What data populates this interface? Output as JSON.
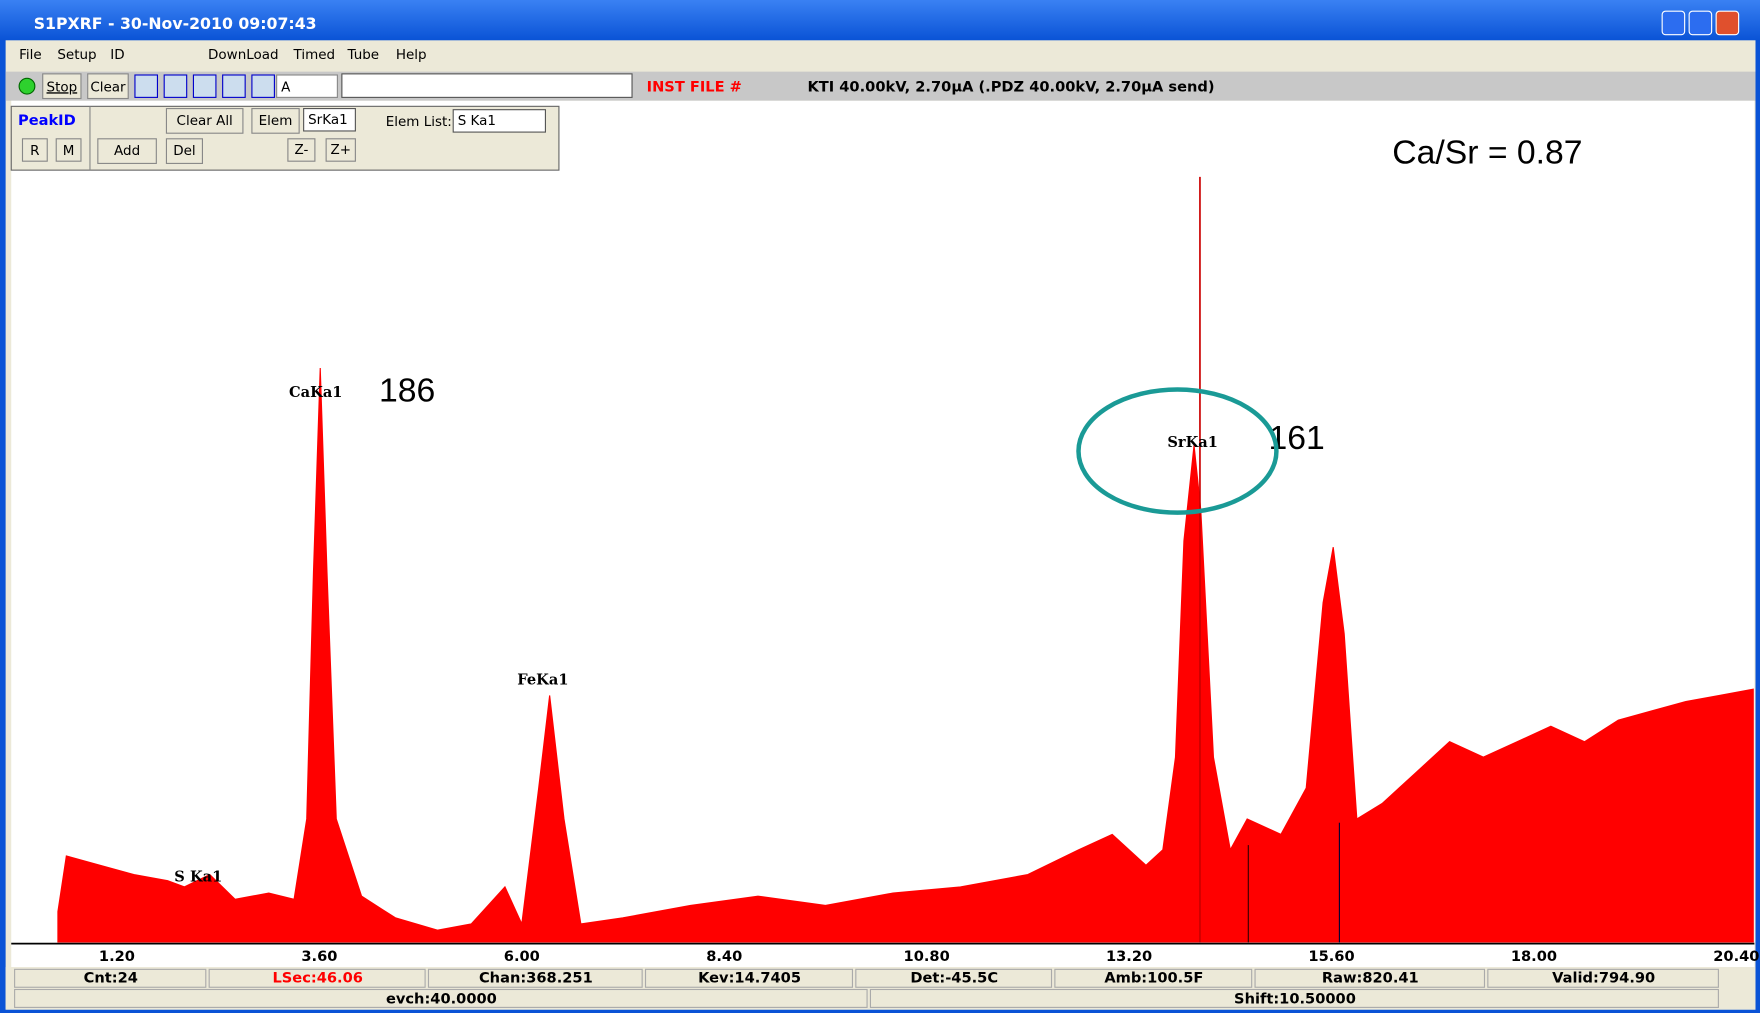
{
  "window": {
    "title": "S1PXRF - 30-Nov-2010 09:07:43"
  },
  "menu": [
    "File",
    "Setup",
    "ID",
    "DownLoad",
    "Timed",
    "Tube",
    "Help"
  ],
  "toolbar": {
    "stop": "Stop",
    "clear": "Clear",
    "combo": "A",
    "inst_file": "INST FILE #",
    "status": "KTI 40.00kV, 2.70µA (.PDZ 40.00kV, 2.70µA send)"
  },
  "peakid": {
    "title": "PeakID",
    "r": "R",
    "m": "M",
    "clear_all": "Clear All",
    "elem": "Elem",
    "elem_value": "SrKa1",
    "elem_list": "Elem List:",
    "elem_list_value": "S Ka1",
    "add": "Add",
    "del": "Del",
    "z_minus": "Z-",
    "z_plus": "Z+"
  },
  "chart_data": {
    "type": "area",
    "color": "#ff0000",
    "x": [
      0.5,
      0.6,
      1.0,
      1.4,
      1.8,
      2.0,
      2.3,
      2.6,
      3.0,
      3.3,
      3.45,
      3.53,
      3.61,
      3.69,
      3.8,
      4.1,
      4.5,
      5.0,
      5.4,
      5.8,
      6.0,
      6.2,
      6.33,
      6.5,
      6.7,
      7.2,
      8.0,
      8.8,
      9.6,
      10.4,
      11.2,
      12.0,
      12.6,
      13.0,
      13.4,
      13.6,
      13.75,
      13.85,
      13.97,
      14.05,
      14.2,
      14.4,
      14.6,
      15.0,
      15.3,
      15.5,
      15.62,
      15.75,
      15.9,
      16.2,
      16.6,
      17.0,
      17.4,
      17.8,
      18.2,
      18.6,
      19.0,
      19.4,
      19.8,
      20.2,
      20.6
    ],
    "values": [
      10,
      28,
      25,
      22,
      20,
      18,
      22,
      14,
      16,
      14,
      40,
      120,
      186,
      120,
      40,
      15,
      8,
      4,
      6,
      18,
      6,
      50,
      80,
      40,
      6,
      8,
      12,
      15,
      12,
      16,
      18,
      22,
      30,
      35,
      25,
      30,
      60,
      130,
      161,
      140,
      60,
      30,
      40,
      35,
      50,
      110,
      128,
      100,
      40,
      45,
      55,
      65,
      60,
      65,
      70,
      65,
      72,
      75,
      78,
      80,
      82
    ],
    "xlim": [
      0,
      20.6
    ],
    "ylim": [
      0,
      270
    ],
    "xticks": [
      {
        "value": 1.2,
        "label": "1.20"
      },
      {
        "value": 3.6,
        "label": "3.60"
      },
      {
        "value": 6.0,
        "label": "6.00"
      },
      {
        "value": 8.4,
        "label": "8.40"
      },
      {
        "value": 10.8,
        "label": "10.80"
      },
      {
        "value": 13.2,
        "label": "13.20"
      },
      {
        "value": 15.6,
        "label": "15.60"
      },
      {
        "value": 18.0,
        "label": "18.00"
      },
      {
        "value": 20.4,
        "label": "20.40"
      }
    ],
    "peak_labels": [
      "CaKa1",
      "FeKa1",
      "SrKa1",
      "S Ka1"
    ],
    "annotations": [
      "186",
      "161",
      "Ca/Sr = 0.87"
    ]
  },
  "status_bar": {
    "row1": [
      "Cnt:24",
      "LSec:46.06",
      "Chan:368.251",
      "Kev:14.7405",
      "Det:-45.5C",
      "Amb:100.5F",
      "Raw:820.41",
      "Valid:794.90"
    ],
    "row2": [
      "evch:40.0000",
      "Shift:10.50000"
    ]
  }
}
